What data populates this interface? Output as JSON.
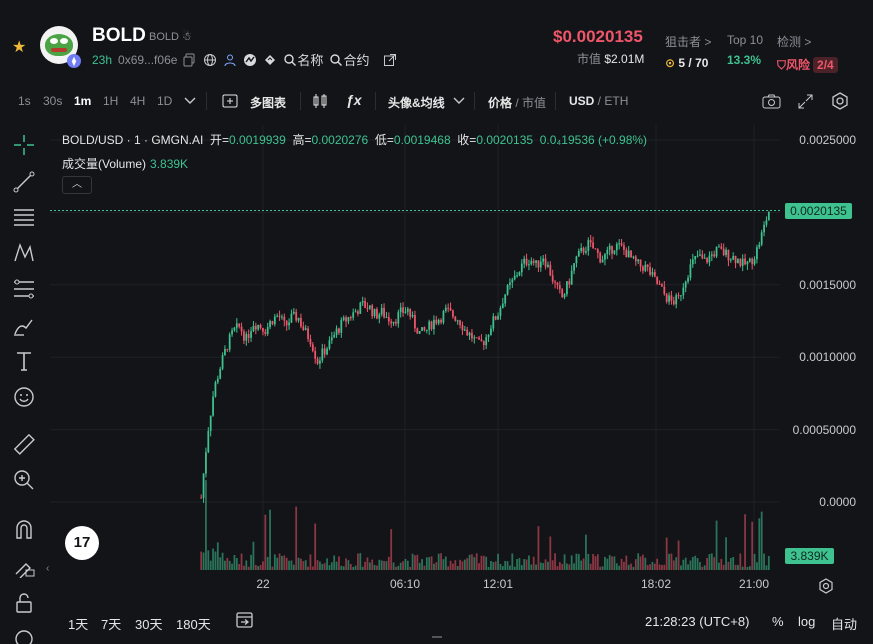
{
  "header": {
    "token_name": "BOLD",
    "token_sub": "BOLD",
    "age": "23h",
    "address": "0x69...f06e",
    "name_link": "名称",
    "contract_link": "合约",
    "price": "$0.0020135",
    "mcap_label": "市值",
    "mcap_value": "$2.01M",
    "snipers_label": "狙击者 >",
    "snipers_value": "5 / 70",
    "top10_label": "Top 10",
    "top10_value": "13.3%",
    "check_label": "检测 >",
    "risk_label": "风险",
    "risk_value": "2/4",
    "colors": {
      "price_red": "#f0566a",
      "green": "#3ec28f",
      "star": "#f0b93a"
    }
  },
  "toolbar": {
    "intervals": [
      "1s",
      "30s",
      "1m",
      "1H",
      "4H",
      "1D"
    ],
    "active_interval": "1m",
    "multi_chart": "多图表",
    "indicators": "头像&均线",
    "price": "价格",
    "mcap": "市值",
    "usd": "USD",
    "eth": "ETH"
  },
  "legend": {
    "pair": "BOLD/USD · 1 · GMGN.AI",
    "open_label": "开=",
    "open": "0.0019939",
    "high_label": "高=",
    "high": "0.0020276",
    "low_label": "低=",
    "low": "0.0019468",
    "close_label": "收=",
    "close": "0.0020135",
    "change": "0.0₄19536 (+0.98%)",
    "volume_label": "成交量(Volume)",
    "volume": "3.839K"
  },
  "chart_data": {
    "type": "candlestick",
    "y_ticks": [
      "0.0025000",
      "0.0015000",
      "0.0010000",
      "0.00050000",
      "0.0000"
    ],
    "ylim": [
      0,
      0.0025
    ],
    "x_ticks": [
      "22",
      "06:10",
      "12:01",
      "18:02",
      "21:00"
    ],
    "last_price": "0.0020135",
    "last_volume": "3.839K",
    "price_series": [
      3e-05,
      0.00048,
      0.00078,
      0.00094,
      0.00108,
      0.00118,
      0.00121,
      0.00112,
      0.00124,
      0.00122,
      0.00119,
      0.00126,
      0.00129,
      0.00121,
      0.00127,
      0.00128,
      0.00118,
      0.00112,
      0.00097,
      0.00104,
      0.0011,
      0.00118,
      0.00124,
      0.00128,
      0.00132,
      0.00136,
      0.00135,
      0.00129,
      0.00131,
      0.00127,
      0.00126,
      0.00131,
      0.00133,
      0.00123,
      0.00116,
      0.00119,
      0.00125,
      0.00127,
      0.00132,
      0.00129,
      0.00126,
      0.00118,
      0.00114,
      0.00108,
      0.00112,
      0.00123,
      0.0013,
      0.00143,
      0.0015,
      0.00158,
      0.00165,
      0.00168,
      0.00163,
      0.0017,
      0.0016,
      0.00148,
      0.00141,
      0.00152,
      0.00167,
      0.00173,
      0.00178,
      0.00174,
      0.00168,
      0.00171,
      0.00177,
      0.00176,
      0.00172,
      0.00166,
      0.00163,
      0.00162,
      0.00155,
      0.00149,
      0.00142,
      0.00138,
      0.0014,
      0.00154,
      0.00164,
      0.0017,
      0.00166,
      0.0017,
      0.00174,
      0.00172,
      0.0017,
      0.00168,
      0.00164,
      0.00165,
      0.00172,
      0.00186,
      0.00201
    ],
    "volume_bars": true,
    "grid": true
  },
  "axis": {
    "time": "21:28:23",
    "tz": "(UTC+8)",
    "pct": "%",
    "log": "log",
    "auto": "自动"
  },
  "ranges": [
    "1天",
    "7天",
    "30天",
    "180天"
  ]
}
